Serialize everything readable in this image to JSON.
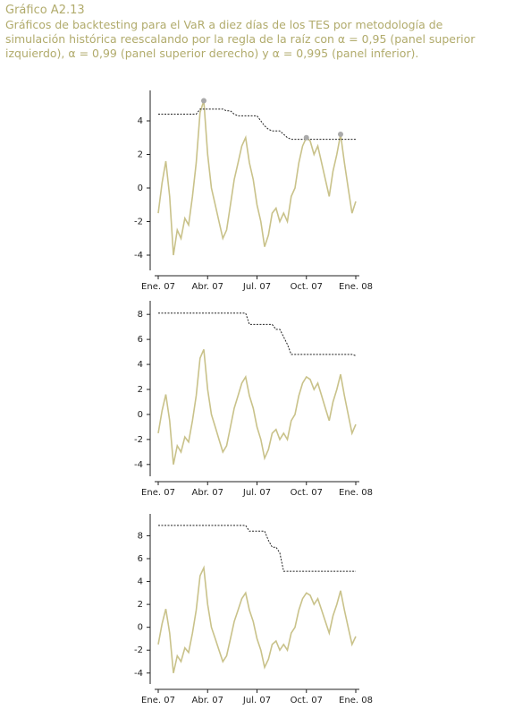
{
  "title": "Gráfico A2.13",
  "subtitle": "Gráficos de backtesting para el VaR a diez días de los TES por metodología de simulación histórica reescalando por la regla de la raíz con α = 0,95 (panel superior izquierdo), α = 0,99 (panel superior derecho) y α = 0,995 (panel inferior).",
  "chart_data": [
    {
      "type": "line",
      "categories": [
        "Ene. 07",
        null,
        null,
        null,
        null,
        null,
        null,
        null,
        null,
        null,
        null,
        null,
        null,
        "Abr. 07",
        null,
        null,
        null,
        null,
        null,
        null,
        null,
        null,
        null,
        null,
        null,
        null,
        "Jul. 07",
        null,
        null,
        null,
        null,
        null,
        null,
        null,
        null,
        null,
        null,
        null,
        null,
        "Oct. 07",
        null,
        null,
        null,
        null,
        null,
        null,
        null,
        null,
        null,
        null,
        null,
        null,
        "Ene. 08"
      ],
      "series": [
        {
          "style": "solid",
          "color": "#c9c28a",
          "values": [
            -1.5,
            0.3,
            1.6,
            -0.5,
            -4.0,
            -2.5,
            -3.0,
            -1.8,
            -2.2,
            -0.5,
            1.5,
            4.5,
            5.2,
            2.0,
            0.0,
            -1.0,
            -2.0,
            -3.0,
            -2.5,
            -1.0,
            0.5,
            1.5,
            2.5,
            3.0,
            1.5,
            0.5,
            -1.0,
            -2.0,
            -3.5,
            -2.8,
            -1.5,
            -1.2,
            -2.0,
            -1.5,
            -2.0,
            -0.5,
            0.0,
            1.5,
            2.5,
            3.0,
            2.8,
            2.0,
            2.5,
            1.5,
            0.5,
            -0.5,
            1.0,
            2.0,
            3.2,
            1.5,
            0.0,
            -1.5,
            -0.8
          ]
        },
        {
          "style": "dashed",
          "color": "#222222",
          "values": [
            4.4,
            4.4,
            4.4,
            4.4,
            4.4,
            4.4,
            4.4,
            4.4,
            4.4,
            4.4,
            4.4,
            4.7,
            4.7,
            4.7,
            4.7,
            4.7,
            4.7,
            4.7,
            4.6,
            4.6,
            4.4,
            4.3,
            4.3,
            4.3,
            4.3,
            4.3,
            4.3,
            4.0,
            3.7,
            3.5,
            3.4,
            3.4,
            3.4,
            3.2,
            3.0,
            2.9,
            2.9,
            2.9,
            2.9,
            2.9,
            2.9,
            2.9,
            2.9,
            2.9,
            2.9,
            2.9,
            2.9,
            2.9,
            2.9,
            2.9,
            2.9,
            2.9,
            2.9
          ]
        },
        {
          "style": "points",
          "color": "#aaaaaa",
          "values": [
            null,
            null,
            null,
            null,
            null,
            null,
            null,
            null,
            null,
            null,
            null,
            null,
            5.2,
            null,
            null,
            null,
            null,
            null,
            null,
            null,
            null,
            null,
            null,
            null,
            null,
            null,
            null,
            null,
            null,
            null,
            null,
            null,
            null,
            null,
            null,
            null,
            null,
            null,
            null,
            3.0,
            null,
            null,
            null,
            null,
            null,
            null,
            null,
            null,
            3.2,
            null,
            null,
            null,
            null
          ]
        }
      ],
      "ylim": [
        -4.8,
        5.6
      ],
      "yticks": [
        -4,
        -2,
        0,
        2,
        4
      ]
    },
    {
      "type": "line",
      "categories": [
        "Ene. 07",
        null,
        null,
        null,
        null,
        null,
        null,
        null,
        null,
        null,
        null,
        null,
        null,
        "Abr. 07",
        null,
        null,
        null,
        null,
        null,
        null,
        null,
        null,
        null,
        null,
        null,
        null,
        "Jul. 07",
        null,
        null,
        null,
        null,
        null,
        null,
        null,
        null,
        null,
        null,
        null,
        null,
        "Oct. 07",
        null,
        null,
        null,
        null,
        null,
        null,
        null,
        null,
        null,
        null,
        null,
        null,
        "Ene. 08"
      ],
      "series": [
        {
          "style": "solid",
          "color": "#c9c28a",
          "values": [
            -1.5,
            0.3,
            1.6,
            -0.5,
            -4.0,
            -2.5,
            -3.0,
            -1.8,
            -2.2,
            -0.5,
            1.5,
            4.5,
            5.2,
            2.0,
            0.0,
            -1.0,
            -2.0,
            -3.0,
            -2.5,
            -1.0,
            0.5,
            1.5,
            2.5,
            3.0,
            1.5,
            0.5,
            -1.0,
            -2.0,
            -3.5,
            -2.8,
            -1.5,
            -1.2,
            -2.0,
            -1.5,
            -2.0,
            -0.5,
            0.0,
            1.5,
            2.5,
            3.0,
            2.8,
            2.0,
            2.5,
            1.5,
            0.5,
            -0.5,
            1.0,
            2.0,
            3.2,
            1.5,
            0.0,
            -1.5,
            -0.8
          ]
        },
        {
          "style": "dashed",
          "color": "#222222",
          "values": [
            8.1,
            8.1,
            8.1,
            8.1,
            8.1,
            8.1,
            8.1,
            8.1,
            8.1,
            8.1,
            8.1,
            8.1,
            8.1,
            8.1,
            8.1,
            8.1,
            8.1,
            8.1,
            8.1,
            8.1,
            8.1,
            8.1,
            8.1,
            8.1,
            7.2,
            7.2,
            7.2,
            7.2,
            7.2,
            7.2,
            7.2,
            6.8,
            6.8,
            6.2,
            5.6,
            4.8,
            4.8,
            4.8,
            4.8,
            4.8,
            4.8,
            4.8,
            4.8,
            4.8,
            4.8,
            4.8,
            4.8,
            4.8,
            4.8,
            4.8,
            4.8,
            4.8,
            4.7
          ]
        }
      ],
      "ylim": [
        -4.8,
        8.8
      ],
      "yticks": [
        -4,
        -2,
        0,
        2,
        4,
        6,
        8
      ]
    },
    {
      "type": "line",
      "categories": [
        "Ene. 07",
        null,
        null,
        null,
        null,
        null,
        null,
        null,
        null,
        null,
        null,
        null,
        null,
        "Abr. 07",
        null,
        null,
        null,
        null,
        null,
        null,
        null,
        null,
        null,
        null,
        null,
        null,
        "Jul. 07",
        null,
        null,
        null,
        null,
        null,
        null,
        null,
        null,
        null,
        null,
        null,
        null,
        "Oct. 07",
        null,
        null,
        null,
        null,
        null,
        null,
        null,
        null,
        null,
        null,
        null,
        null,
        "Ene. 08"
      ],
      "series": [
        {
          "style": "solid",
          "color": "#c9c28a",
          "values": [
            -1.5,
            0.3,
            1.6,
            -0.5,
            -4.0,
            -2.5,
            -3.0,
            -1.8,
            -2.2,
            -0.5,
            1.5,
            4.5,
            5.2,
            2.0,
            0.0,
            -1.0,
            -2.0,
            -3.0,
            -2.5,
            -1.0,
            0.5,
            1.5,
            2.5,
            3.0,
            1.5,
            0.5,
            -1.0,
            -2.0,
            -3.5,
            -2.8,
            -1.5,
            -1.2,
            -2.0,
            -1.5,
            -2.0,
            -0.5,
            0.0,
            1.5,
            2.5,
            3.0,
            2.8,
            2.0,
            2.5,
            1.5,
            0.5,
            -0.5,
            1.0,
            2.0,
            3.2,
            1.5,
            0.0,
            -1.5,
            -0.8
          ]
        },
        {
          "style": "dashed",
          "color": "#222222",
          "values": [
            8.9,
            8.9,
            8.9,
            8.9,
            8.9,
            8.9,
            8.9,
            8.9,
            8.9,
            8.9,
            8.9,
            8.9,
            8.9,
            8.9,
            8.9,
            8.9,
            8.9,
            8.9,
            8.9,
            8.9,
            8.9,
            8.9,
            8.9,
            8.9,
            8.4,
            8.4,
            8.4,
            8.4,
            8.4,
            7.6,
            7.0,
            7.0,
            6.5,
            4.9,
            4.9,
            4.9,
            4.9,
            4.9,
            4.9,
            4.9,
            4.9,
            4.9,
            4.9,
            4.9,
            4.9,
            4.9,
            4.9,
            4.9,
            4.9,
            4.9,
            4.9,
            4.9,
            4.9
          ]
        }
      ],
      "ylim": [
        -4.8,
        9.6
      ],
      "yticks": [
        -4,
        -2,
        0,
        2,
        4,
        6,
        8
      ]
    }
  ]
}
